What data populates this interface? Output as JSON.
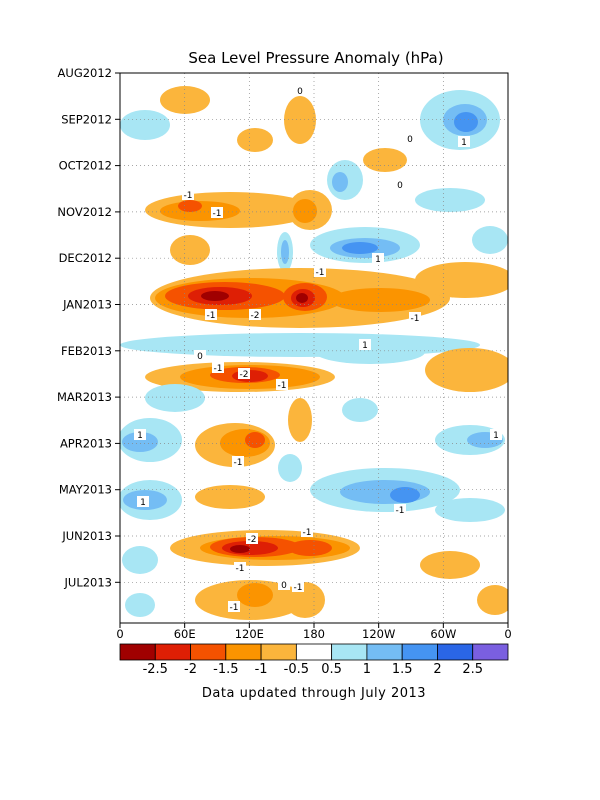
{
  "chart_data": {
    "type": "heatmap",
    "title": "Sea Level Pressure Anomaly (hPa)",
    "xlabel": "",
    "ylabel": "",
    "x_ticks": [
      "0",
      "60E",
      "120E",
      "180",
      "120W",
      "60W",
      "0"
    ],
    "x_tick_values": [
      0,
      60,
      120,
      180,
      240,
      300,
      360
    ],
    "xlim": [
      0,
      360
    ],
    "y_ticks": [
      "AUG2012",
      "SEP2012",
      "OCT2012",
      "NOV2012",
      "DEC2012",
      "JAN2013",
      "FEB2013",
      "MAR2013",
      "APR2013",
      "MAY2013",
      "JUN2013",
      "JUL2013"
    ],
    "y_axis_direction": "time increases downward",
    "grid": "dotted",
    "colorbar": {
      "placement": "bottom",
      "labels": [
        "-2.5",
        "-2",
        "-1.5",
        "-1",
        "-0.5",
        "0.5",
        "1",
        "1.5",
        "2",
        "2.5"
      ],
      "colors": [
        "#a00000",
        "#de1f05",
        "#f55200",
        "#fb9400",
        "#fbb53c",
        "#ffffff",
        "#a8e6f4",
        "#74bdf4",
        "#4594f2",
        "#2a66e6",
        "#7a5fe0"
      ]
    },
    "contour_labels": [
      "0",
      "-1",
      "-2",
      "1"
    ],
    "features": [
      {
        "period": "NOV2012",
        "lon": [
          90,
          135
        ],
        "value": -1.5
      },
      {
        "period": "DEC2012",
        "lon": [
          315,
          360
        ],
        "value": 1
      },
      {
        "period": "DEC2012",
        "lon": [
          225,
          270
        ],
        "value": 1.5
      },
      {
        "period": "JAN2013",
        "lon": [
          60,
          135
        ],
        "value": -2.5
      },
      {
        "period": "JAN2013",
        "lon": [
          150,
          190
        ],
        "value": -2.5
      },
      {
        "period": "JAN2013",
        "lon": [
          195,
          270
        ],
        "value": -1.5
      },
      {
        "period": "FEB2013",
        "lon": [
          210,
          260
        ],
        "value": 1
      },
      {
        "period": "MAR2013",
        "lon": [
          90,
          135
        ],
        "value": -2.5
      },
      {
        "period": "MAR2013",
        "lon": [
          135,
          185
        ],
        "value": -1.5
      },
      {
        "period": "APR2013",
        "lon": [
          90,
          150
        ],
        "value": -1.5
      },
      {
        "period": "APR2013",
        "lon": [
          0,
          30
        ],
        "value": 1.5
      },
      {
        "period": "MAY2013",
        "lon": [
          230,
          290
        ],
        "value": 1.5
      },
      {
        "period": "MAY2013",
        "lon": [
          15,
          45
        ],
        "value": 1.5
      },
      {
        "period": "JUN2013",
        "lon": [
          90,
          140
        ],
        "value": -2.5
      },
      {
        "period": "JUN2013",
        "lon": [
          150,
          195
        ],
        "value": -2
      },
      {
        "period": "JUL2013",
        "lon": [
          110,
          150
        ],
        "value": -1.5
      }
    ]
  },
  "footer": "Data updated through July 2013"
}
